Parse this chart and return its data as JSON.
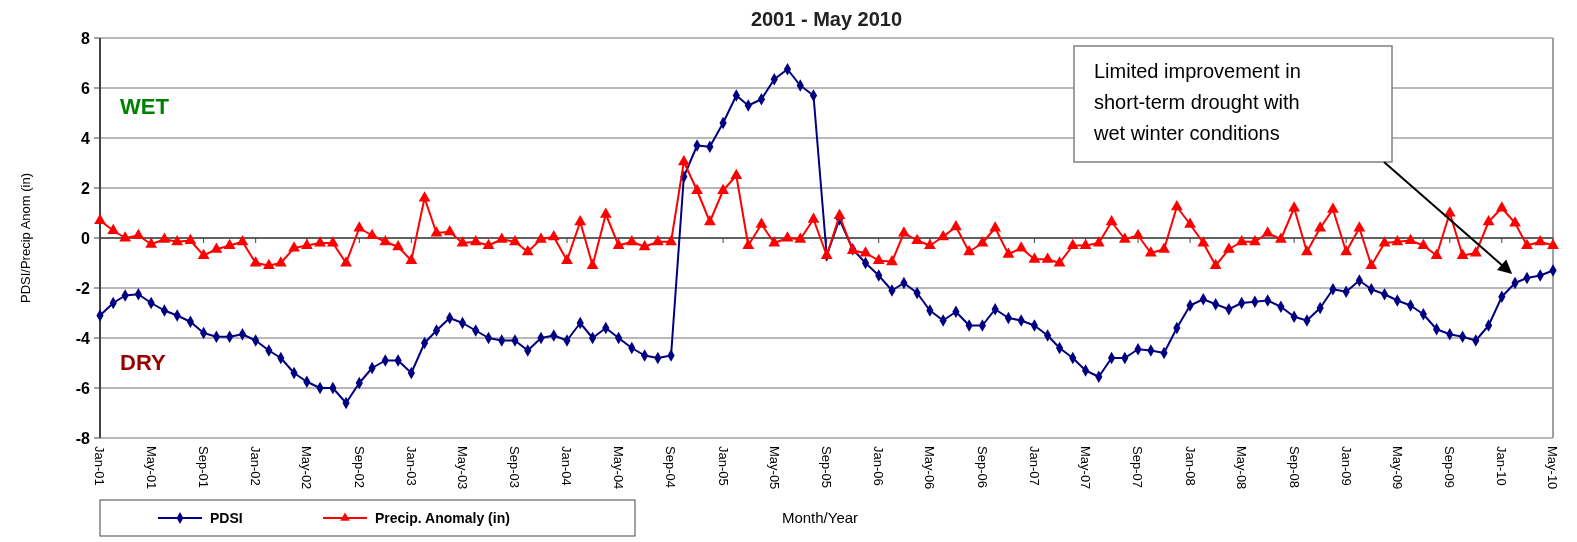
{
  "chart_data": {
    "type": "line",
    "title": "2001 - May 2010",
    "xlabel": "Month/Year",
    "ylabel": "PDSI/Precip Anom (in)",
    "x": [
      "2001-01",
      "2001-02",
      "2001-03",
      "2001-04",
      "2001-05",
      "2001-06",
      "2001-07",
      "2001-08",
      "2001-09",
      "2001-10",
      "2001-11",
      "2001-12",
      "2002-01",
      "2002-02",
      "2002-03",
      "2002-04",
      "2002-05",
      "2002-06",
      "2002-07",
      "2002-08",
      "2002-09",
      "2002-10",
      "2002-11",
      "2002-12",
      "2003-01",
      "2003-02",
      "2003-03",
      "2003-04",
      "2003-05",
      "2003-06",
      "2003-07",
      "2003-08",
      "2003-09",
      "2003-10",
      "2003-11",
      "2003-12",
      "2004-01",
      "2004-02",
      "2004-03",
      "2004-04",
      "2004-05",
      "2004-06",
      "2004-07",
      "2004-08",
      "2004-09",
      "2004-10",
      "2004-11",
      "2004-12",
      "2005-01",
      "2005-02",
      "2005-03",
      "2005-04",
      "2005-05",
      "2005-06",
      "2005-07",
      "2005-08",
      "2005-09",
      "2005-10",
      "2005-11",
      "2005-12",
      "2006-01",
      "2006-02",
      "2006-03",
      "2006-04",
      "2006-05",
      "2006-06",
      "2006-07",
      "2006-08",
      "2006-09",
      "2006-10",
      "2006-11",
      "2006-12",
      "2007-01",
      "2007-02",
      "2007-03",
      "2007-04",
      "2007-05",
      "2007-06",
      "2007-07",
      "2007-08",
      "2007-09",
      "2007-10",
      "2007-11",
      "2007-12",
      "2008-01",
      "2008-02",
      "2008-03",
      "2008-04",
      "2008-05",
      "2008-06",
      "2008-07",
      "2008-08",
      "2008-09",
      "2008-10",
      "2008-11",
      "2008-12",
      "2009-01",
      "2009-02",
      "2009-03",
      "2009-04",
      "2009-05",
      "2009-06",
      "2009-07",
      "2009-08",
      "2009-09",
      "2009-10",
      "2009-11",
      "2009-12",
      "2010-01",
      "2010-02",
      "2010-03",
      "2010-04",
      "2010-05"
    ],
    "series": [
      {
        "name": "PDSI",
        "color": "#000080",
        "marker": "diamond",
        "values": [
          -3.1,
          -2.6,
          -2.3,
          -2.25,
          -2.6,
          -2.9,
          -3.1,
          -3.35,
          -3.8,
          -3.95,
          -3.95,
          -3.85,
          -4.1,
          -4.5,
          -4.8,
          -5.4,
          -5.75,
          -6.0,
          -6.0,
          -6.6,
          -5.8,
          -5.2,
          -4.9,
          -4.9,
          -5.4,
          -4.2,
          -3.7,
          -3.2,
          -3.4,
          -3.7,
          -4.0,
          -4.1,
          -4.1,
          -4.5,
          -4.0,
          -3.9,
          -4.1,
          -3.4,
          -4.0,
          -3.6,
          -4.0,
          -4.4,
          -4.7,
          -4.8,
          -4.7,
          2.45,
          3.7,
          3.65,
          4.6,
          5.7,
          5.3,
          5.55,
          6.35,
          6.75,
          6.1,
          5.7,
          -0.7,
          0.75,
          -0.45,
          -1.0,
          -1.5,
          -2.1,
          -1.8,
          -2.2,
          -2.9,
          -3.3,
          -2.95,
          -3.5,
          -3.5,
          -2.85,
          -3.2,
          -3.3,
          -3.5,
          -3.9,
          -4.4,
          -4.8,
          -5.3,
          -5.55,
          -4.8,
          -4.8,
          -4.45,
          -4.5,
          -4.6,
          -3.6,
          -2.7,
          -2.45,
          -2.65,
          -2.85,
          -2.6,
          -2.55,
          -2.5,
          -2.75,
          -3.15,
          -3.3,
          -2.8,
          -2.05,
          -2.15,
          -1.7,
          -2.05,
          -2.25,
          -2.5,
          -2.7,
          -3.05,
          -3.65,
          -3.85,
          -3.95,
          -4.1,
          -3.5,
          -2.35,
          -1.8,
          -1.6,
          -1.5,
          -1.3
        ]
      },
      {
        "name": "Precip. Anomaly (in)",
        "color": "#ff0000",
        "marker": "triangle",
        "values": [
          0.7,
          0.3,
          0.0,
          0.1,
          -0.25,
          -0.05,
          -0.15,
          -0.1,
          -0.7,
          -0.45,
          -0.3,
          -0.15,
          -1.0,
          -1.1,
          -1.0,
          -0.4,
          -0.3,
          -0.2,
          -0.2,
          -1.0,
          0.4,
          0.1,
          -0.15,
          -0.35,
          -0.9,
          1.6,
          0.2,
          0.25,
          -0.2,
          -0.15,
          -0.3,
          -0.05,
          -0.15,
          -0.55,
          -0.05,
          0.05,
          -0.9,
          0.65,
          -1.1,
          0.95,
          -0.3,
          -0.15,
          -0.35,
          -0.15,
          -0.15,
          3.05,
          1.9,
          0.65,
          1.9,
          2.5,
          -0.3,
          0.55,
          -0.2,
          0.0,
          -0.05,
          0.75,
          -0.7,
          0.9,
          -0.5,
          -0.6,
          -0.9,
          -0.95,
          0.2,
          -0.1,
          -0.3,
          0.05,
          0.45,
          -0.55,
          -0.2,
          0.4,
          -0.65,
          -0.4,
          -0.85,
          -0.85,
          -1.0,
          -0.3,
          -0.3,
          -0.2,
          0.65,
          -0.05,
          0.1,
          -0.6,
          -0.45,
          1.25,
          0.55,
          -0.2,
          -1.1,
          -0.45,
          -0.15,
          -0.15,
          0.2,
          -0.05,
          1.2,
          -0.55,
          0.4,
          1.15,
          -0.55,
          0.4,
          -1.1,
          -0.2,
          -0.15,
          -0.1,
          -0.3,
          -0.7,
          1.0,
          -0.7,
          -0.6,
          0.65,
          1.2,
          0.6,
          -0.3,
          -0.15,
          -0.3
        ]
      }
    ],
    "xlim": [
      "2001-01",
      "2010-05"
    ],
    "xticks": [
      {
        "value": "2001-01",
        "label": "Jan-01"
      },
      {
        "value": "2001-05",
        "label": "May-01"
      },
      {
        "value": "2001-09",
        "label": "Sep-01"
      },
      {
        "value": "2002-01",
        "label": "Jan-02"
      },
      {
        "value": "2002-05",
        "label": "May-02"
      },
      {
        "value": "2002-09",
        "label": "Sep-02"
      },
      {
        "value": "2003-01",
        "label": "Jan-03"
      },
      {
        "value": "2003-05",
        "label": "May-03"
      },
      {
        "value": "2003-09",
        "label": "Sep-03"
      },
      {
        "value": "2004-01",
        "label": "Jan-04"
      },
      {
        "value": "2004-05",
        "label": "May-04"
      },
      {
        "value": "2004-09",
        "label": "Sep-04"
      },
      {
        "value": "2005-01",
        "label": "Jan-05"
      },
      {
        "value": "2005-05",
        "label": "May-05"
      },
      {
        "value": "2005-09",
        "label": "Sep-05"
      },
      {
        "value": "2006-01",
        "label": "Jan-06"
      },
      {
        "value": "2006-05",
        "label": "May-06"
      },
      {
        "value": "2006-09",
        "label": "Sep-06"
      },
      {
        "value": "2007-01",
        "label": "Jan-07"
      },
      {
        "value": "2007-05",
        "label": "May-07"
      },
      {
        "value": "2007-09",
        "label": "Sep-07"
      },
      {
        "value": "2008-01",
        "label": "Jan-08"
      },
      {
        "value": "2008-05",
        "label": "May-08"
      },
      {
        "value": "2008-09",
        "label": "Sep-08"
      },
      {
        "value": "2009-01",
        "label": "Jan-09"
      },
      {
        "value": "2009-05",
        "label": "May-09"
      },
      {
        "value": "2009-09",
        "label": "Sep-09"
      },
      {
        "value": "2010-01",
        "label": "Jan-10"
      },
      {
        "value": "2010-05",
        "label": "May-10"
      }
    ],
    "ylim": [
      -8,
      8
    ],
    "yticks": [
      -8,
      -6,
      -4,
      -2,
      0,
      2,
      4,
      6,
      8
    ],
    "grid": "y",
    "legend": "bottom",
    "line_style": "solid",
    "annotations": [
      "WET",
      "DRY",
      "Limited improvement in short-term drought with wet winter conditions"
    ]
  }
}
